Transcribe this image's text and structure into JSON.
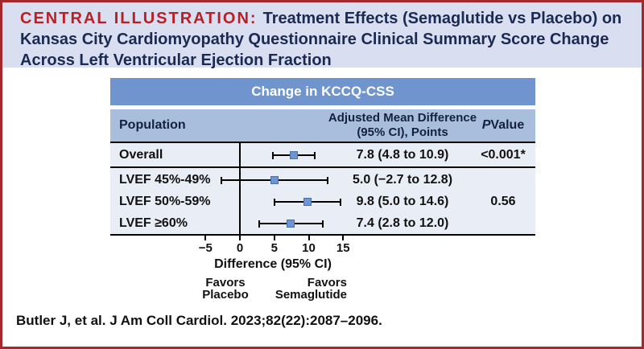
{
  "header": {
    "eyebrow": "CENTRAL ILLUSTRATION:",
    "line1_rest": "Treatment Effects (Semaglutide vs Placebo) on",
    "line2": "Kansas City Cardiomyopathy Questionnaire Clinical Summary Score Change",
    "line3": "Across Left Ventricular Ejection Fraction"
  },
  "table": {
    "banner": "Change in KCCQ-CSS",
    "columns": {
      "population": "Population",
      "amd_line1": "Adjusted Mean Difference",
      "amd_line2": "(95% CI), Points",
      "p_italic": "P",
      "p_rest": " Value"
    }
  },
  "chart_data": {
    "type": "scatter",
    "subtype": "forest-plot",
    "title": "Change in KCCQ-CSS",
    "xlabel": "Difference (95% CI)",
    "xlim": [
      -7.5,
      17.5
    ],
    "x_ticks": [
      -5,
      0,
      5,
      10,
      15
    ],
    "x_tick_labels": [
      "−5",
      "0",
      "5",
      "10",
      "15"
    ],
    "reference_line_x": 0,
    "grid": false,
    "favors_left": [
      "Favors",
      "Placebo"
    ],
    "favors_right": [
      "Favors",
      "Semaglutide"
    ],
    "rows": [
      {
        "label": "Overall",
        "estimate": 7.8,
        "ci_low": 4.8,
        "ci_high": 10.9,
        "value_text": "7.8 (4.8 to 10.9)",
        "p_text": "<0.001*"
      },
      {
        "label": "LVEF 45%-49%",
        "estimate": 5.0,
        "ci_low": -2.7,
        "ci_high": 12.8,
        "value_text": "5.0 (−2.7 to 12.8)",
        "p_text": ""
      },
      {
        "label": "LVEF 50%-59%",
        "estimate": 9.8,
        "ci_low": 5.0,
        "ci_high": 14.6,
        "value_text": "9.8 (5.0 to 14.6)",
        "p_text": "0.56"
      },
      {
        "label": "LVEF ≥60%",
        "estimate": 7.4,
        "ci_low": 2.8,
        "ci_high": 12.0,
        "value_text": "7.4 (2.8 to 12.0)",
        "p_text": ""
      }
    ]
  },
  "colors": {
    "frame_border": "#a3272c",
    "eyebrow_red": "#b52126",
    "title_navy": "#1b2a52",
    "header_band_bg": "#d9dff0",
    "banner_blue": "#6f94ce",
    "column_header_blue": "#a9bedd",
    "plot_bg": "#e9edf6",
    "marker_blue": "#6b95d7"
  },
  "footer": {
    "citation": "Butler J, et al. J Am Coll Cardiol. 2023;82(22):2087–2096."
  }
}
